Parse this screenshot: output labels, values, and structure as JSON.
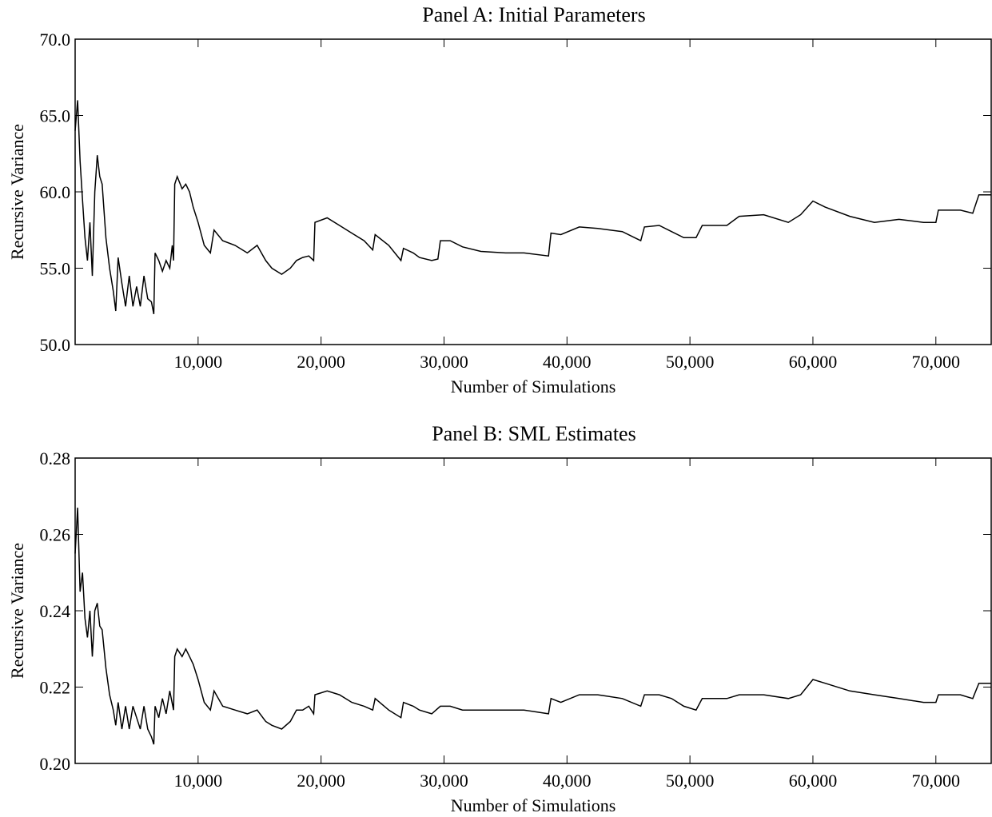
{
  "chart_data": [
    {
      "type": "line",
      "title": "Panel A: Initial Parameters",
      "xlabel": "Number of Simulations",
      "ylabel": "Recursive Variance",
      "color": "#000000",
      "x": [
        0,
        200,
        400,
        600,
        800,
        1000,
        1200,
        1400,
        1600,
        1800,
        2000,
        2200,
        2500,
        2800,
        3100,
        3300,
        3500,
        3800,
        4100,
        4400,
        4700,
        5000,
        5300,
        5600,
        5900,
        6200,
        6400,
        6500,
        6800,
        7100,
        7400,
        7700,
        7900,
        8000,
        8100,
        8300,
        8700,
        9000,
        9300,
        9600,
        10000,
        10500,
        11000,
        11300,
        12000,
        13000,
        14000,
        14800,
        15500,
        16000,
        16800,
        17500,
        18000,
        18500,
        19000,
        19400,
        19500,
        20500,
        21500,
        22500,
        23500,
        24200,
        24400,
        25500,
        26500,
        26700,
        27500,
        28000,
        29000,
        29500,
        29700,
        30500,
        31500,
        33000,
        35000,
        36500,
        38500,
        38700,
        39500,
        41000,
        42500,
        44500,
        45500,
        46000,
        46300,
        47500,
        48500,
        49500,
        50500,
        51000,
        53000,
        54000,
        56000,
        58000,
        59000,
        60000,
        61000,
        63000,
        65000,
        67000,
        69000,
        70000,
        70200,
        72000,
        73000,
        73500,
        74500
      ],
      "values": [
        64,
        66,
        62,
        59.5,
        57,
        55.5,
        58,
        54.5,
        60,
        62.4,
        61,
        60.5,
        57,
        55,
        53.5,
        52.2,
        55.7,
        54,
        52.5,
        54.5,
        52.5,
        53.8,
        52.5,
        54.5,
        53,
        52.8,
        52,
        56,
        55.5,
        54.8,
        55.5,
        55,
        56.5,
        55.5,
        60.5,
        61,
        60.2,
        60.5,
        60,
        59,
        58,
        56.5,
        56,
        57.5,
        56.8,
        56.5,
        56,
        56.5,
        55.5,
        55,
        54.6,
        55,
        55.5,
        55.7,
        55.8,
        55.5,
        58,
        58.3,
        57.8,
        57.3,
        56.8,
        56.2,
        57.2,
        56.5,
        55.5,
        56.3,
        56,
        55.7,
        55.5,
        55.6,
        56.8,
        56.8,
        56.4,
        56.1,
        56,
        56,
        55.8,
        57.3,
        57.2,
        57.7,
        57.6,
        57.4,
        57,
        56.8,
        57.7,
        57.8,
        57.4,
        57,
        57,
        57.8,
        57.8,
        58.4,
        58.5,
        58,
        58.5,
        59.4,
        59,
        58.4,
        58,
        58.2,
        58,
        58,
        58.8,
        58.8,
        58.6,
        59.8,
        59.8
      ],
      "xlim": [
        0,
        74500
      ],
      "ylim": [
        50,
        70
      ],
      "xticks": [
        {
          "value": 10000,
          "label": "10,000"
        },
        {
          "value": 20000,
          "label": "20,000"
        },
        {
          "value": 30000,
          "label": "30,000"
        },
        {
          "value": 40000,
          "label": "40,000"
        },
        {
          "value": 50000,
          "label": "50,000"
        },
        {
          "value": 60000,
          "label": "60,000"
        },
        {
          "value": 70000,
          "label": "70,000"
        }
      ],
      "yticks": [
        {
          "value": 50,
          "label": "50.0"
        },
        {
          "value": 55,
          "label": "55.0"
        },
        {
          "value": 60,
          "label": "60.0"
        },
        {
          "value": 65,
          "label": "65.0"
        },
        {
          "value": 70,
          "label": "70.0"
        }
      ]
    },
    {
      "type": "line",
      "title": "Panel B: SML Estimates",
      "xlabel": "Number of Simulations",
      "ylabel": "Recursive Variance",
      "color": "#000000",
      "x": [
        0,
        200,
        400,
        600,
        800,
        1000,
        1200,
        1400,
        1600,
        1800,
        2000,
        2200,
        2500,
        2800,
        3100,
        3300,
        3500,
        3800,
        4100,
        4400,
        4700,
        5000,
        5300,
        5600,
        5900,
        6200,
        6400,
        6500,
        6800,
        7100,
        7400,
        7700,
        8000,
        8100,
        8300,
        8700,
        9000,
        9300,
        9600,
        10000,
        10500,
        11000,
        11300,
        12000,
        13000,
        14000,
        14800,
        15500,
        16000,
        16800,
        17500,
        18000,
        18500,
        19000,
        19400,
        19500,
        20500,
        21500,
        22500,
        23500,
        24200,
        24400,
        25500,
        26500,
        26700,
        27500,
        28000,
        29000,
        29700,
        30500,
        31500,
        33000,
        35000,
        36500,
        38500,
        38700,
        39500,
        41000,
        42500,
        44500,
        46000,
        46300,
        47500,
        48500,
        49500,
        50500,
        51000,
        53000,
        54000,
        56000,
        58000,
        59000,
        60000,
        61000,
        63000,
        65000,
        67000,
        69000,
        70000,
        70200,
        72000,
        73000,
        73500,
        74500
      ],
      "values": [
        0.255,
        0.267,
        0.245,
        0.25,
        0.238,
        0.233,
        0.24,
        0.228,
        0.24,
        0.242,
        0.236,
        0.235,
        0.225,
        0.218,
        0.214,
        0.21,
        0.216,
        0.209,
        0.215,
        0.209,
        0.215,
        0.212,
        0.209,
        0.215,
        0.209,
        0.207,
        0.205,
        0.215,
        0.212,
        0.217,
        0.213,
        0.219,
        0.214,
        0.228,
        0.23,
        0.228,
        0.23,
        0.228,
        0.226,
        0.222,
        0.216,
        0.214,
        0.219,
        0.215,
        0.214,
        0.213,
        0.214,
        0.211,
        0.21,
        0.209,
        0.211,
        0.214,
        0.214,
        0.215,
        0.213,
        0.218,
        0.219,
        0.218,
        0.216,
        0.215,
        0.214,
        0.217,
        0.214,
        0.212,
        0.216,
        0.215,
        0.214,
        0.213,
        0.215,
        0.215,
        0.214,
        0.214,
        0.214,
        0.214,
        0.213,
        0.217,
        0.216,
        0.218,
        0.218,
        0.217,
        0.215,
        0.218,
        0.218,
        0.217,
        0.215,
        0.214,
        0.217,
        0.217,
        0.218,
        0.218,
        0.217,
        0.218,
        0.222,
        0.221,
        0.219,
        0.218,
        0.217,
        0.216,
        0.216,
        0.218,
        0.218,
        0.217,
        0.221,
        0.221
      ],
      "xlim": [
        0,
        74500
      ],
      "ylim": [
        0.2,
        0.28
      ],
      "xticks": [
        {
          "value": 10000,
          "label": "10,000"
        },
        {
          "value": 20000,
          "label": "20,000"
        },
        {
          "value": 30000,
          "label": "30,000"
        },
        {
          "value": 40000,
          "label": "40,000"
        },
        {
          "value": 50000,
          "label": "50,000"
        },
        {
          "value": 60000,
          "label": "60,000"
        },
        {
          "value": 70000,
          "label": "70,000"
        }
      ],
      "yticks": [
        {
          "value": 0.2,
          "label": "0.20"
        },
        {
          "value": 0.22,
          "label": "0.22"
        },
        {
          "value": 0.24,
          "label": "0.24"
        },
        {
          "value": 0.26,
          "label": "0.26"
        },
        {
          "value": 0.28,
          "label": "0.28"
        }
      ]
    }
  ]
}
